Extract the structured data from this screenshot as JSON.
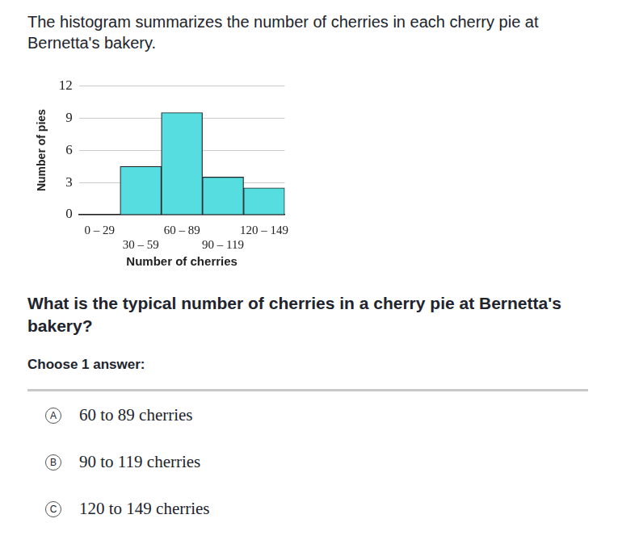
{
  "intro": "The histogram summarizes the number of cherries in each cherry pie at Bernetta's bakery.",
  "chart_data": {
    "type": "bar",
    "x_label": "Number of cherries",
    "y_label": "Number of pies",
    "categories": [
      "0 – 29",
      "30 – 59",
      "60 – 89",
      "90 – 119",
      "120 – 149"
    ],
    "values": [
      0,
      4.5,
      9.5,
      3.5,
      2.5
    ],
    "color": "#55dde0",
    "ylim": [
      0,
      12
    ],
    "yticks": [
      0,
      3,
      6,
      9,
      12
    ],
    "grid": true
  },
  "question": "What is the typical number of cherries in a cherry pie at Bernetta's bakery?",
  "prompt": "Choose 1 answer:",
  "choices": [
    {
      "letter": "A",
      "text": "60 to 89 cherries"
    },
    {
      "letter": "B",
      "text": "90 to 119 cherries"
    },
    {
      "letter": "C",
      "text": "120 to 149 cherries"
    }
  ]
}
